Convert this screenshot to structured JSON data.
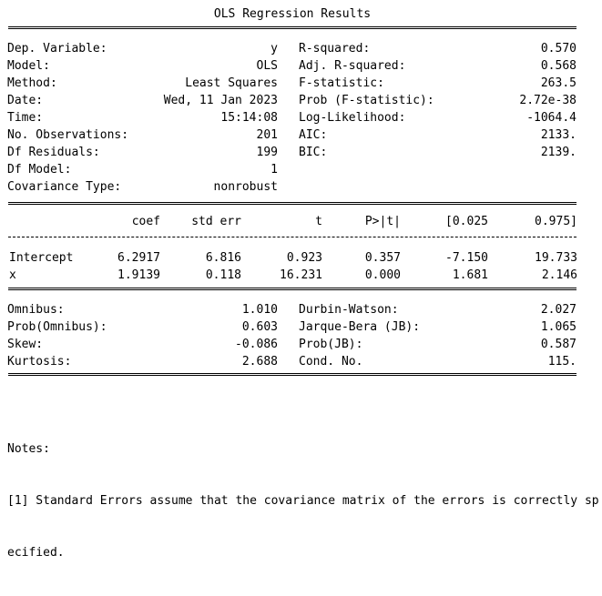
{
  "title": "OLS Regression Results",
  "top_left": [
    {
      "label": "Dep. Variable:",
      "value": "y"
    },
    {
      "label": "Model:",
      "value": "OLS"
    },
    {
      "label": "Method:",
      "value": "Least Squares"
    },
    {
      "label": "Date:",
      "value": "Wed, 11 Jan 2023"
    },
    {
      "label": "Time:",
      "value": "15:14:08"
    },
    {
      "label": "No. Observations:",
      "value": "201"
    },
    {
      "label": "Df Residuals:",
      "value": "199"
    },
    {
      "label": "Df Model:",
      "value": "1"
    },
    {
      "label": "Covariance Type:",
      "value": "nonrobust"
    }
  ],
  "top_right": [
    {
      "label": "R-squared:",
      "value": "0.570"
    },
    {
      "label": "Adj. R-squared:",
      "value": "0.568"
    },
    {
      "label": "F-statistic:",
      "value": "263.5"
    },
    {
      "label": "Prob (F-statistic):",
      "value": "2.72e-38"
    },
    {
      "label": "Log-Likelihood:",
      "value": "-1064.4"
    },
    {
      "label": "AIC:",
      "value": "2133."
    },
    {
      "label": "BIC:",
      "value": "2139."
    }
  ],
  "coef_headers": [
    "coef",
    "std err",
    "t",
    "P>|t|",
    "[0.025",
    "0.975]"
  ],
  "coef_rows": [
    {
      "name": "Intercept",
      "values": [
        "6.2917",
        "6.816",
        "0.923",
        "0.357",
        "-7.150",
        "19.733"
      ]
    },
    {
      "name": "x",
      "values": [
        "1.9139",
        "0.118",
        "16.231",
        "0.000",
        "1.681",
        "2.146"
      ]
    }
  ],
  "bottom_left": [
    {
      "label": "Omnibus:",
      "value": "1.010"
    },
    {
      "label": "Prob(Omnibus):",
      "value": "0.603"
    },
    {
      "label": "Skew:",
      "value": "-0.086"
    },
    {
      "label": "Kurtosis:",
      "value": "2.688"
    }
  ],
  "bottom_right": [
    {
      "label": "Durbin-Watson:",
      "value": "2.027"
    },
    {
      "label": "Jarque-Bera (JB):",
      "value": "1.065"
    },
    {
      "label": "Prob(JB):",
      "value": "0.587"
    },
    {
      "label": "Cond. No.",
      "value": "115."
    }
  ],
  "notes": {
    "heading": "Notes:",
    "line1": "[1] Standard Errors assume that the covariance matrix of the errors is correctly sp",
    "line2": "ecified."
  }
}
